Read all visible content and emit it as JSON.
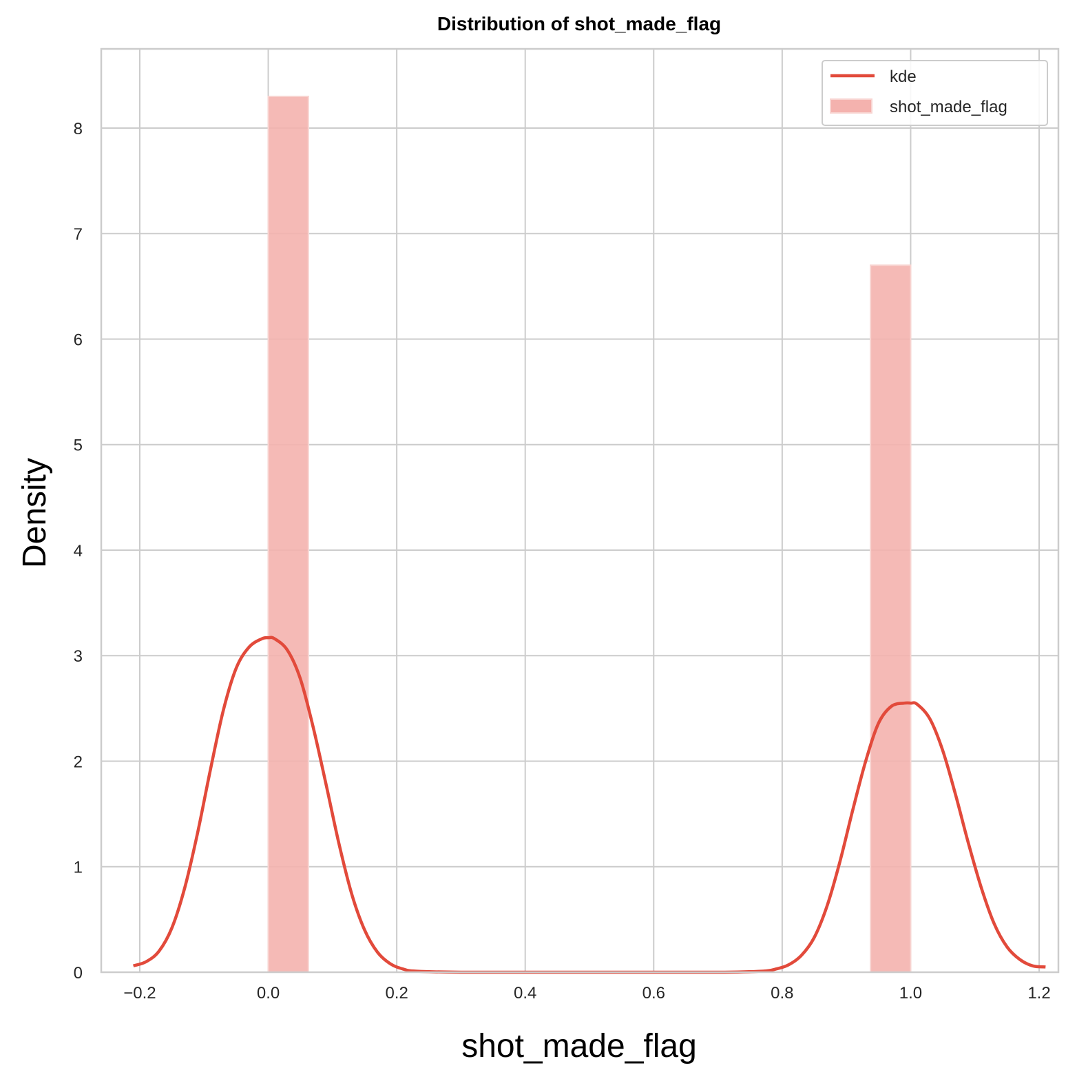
{
  "chart_data": {
    "type": "bar",
    "title": "Distribution of shot_made_flag",
    "xlabel": "shot_made_flag",
    "ylabel": "Density",
    "xlim": [
      -0.26,
      1.23
    ],
    "ylim": [
      0,
      8.75
    ],
    "x_ticks": [
      -0.2,
      0.0,
      0.2,
      0.4,
      0.6,
      0.8,
      1.0,
      1.2
    ],
    "x_tick_labels": [
      "−0.2",
      "0.0",
      "0.2",
      "0.4",
      "0.6",
      "0.8",
      "1.0",
      "1.2"
    ],
    "y_ticks": [
      0,
      1,
      2,
      3,
      4,
      5,
      6,
      7,
      8
    ],
    "y_tick_labels": [
      "0",
      "1",
      "2",
      "3",
      "4",
      "5",
      "6",
      "7",
      "8"
    ],
    "grid": true,
    "legend_position": "top-right",
    "histogram": {
      "name": "shot_made_flag",
      "color": "#f4b2ae",
      "bins": [
        {
          "x0": 0.0,
          "x1": 0.0625,
          "density": 8.3
        },
        {
          "x0": 0.9375,
          "x1": 1.0,
          "density": 6.7
        }
      ]
    },
    "kde": {
      "name": "kde",
      "color": "#e24a3b",
      "points": [
        [
          -0.21,
          0.06
        ],
        [
          -0.19,
          0.1
        ],
        [
          -0.17,
          0.2
        ],
        [
          -0.15,
          0.42
        ],
        [
          -0.13,
          0.8
        ],
        [
          -0.11,
          1.32
        ],
        [
          -0.09,
          1.92
        ],
        [
          -0.07,
          2.48
        ],
        [
          -0.05,
          2.88
        ],
        [
          -0.03,
          3.08
        ],
        [
          -0.01,
          3.16
        ],
        [
          0.0,
          3.17
        ],
        [
          0.01,
          3.16
        ],
        [
          0.03,
          3.05
        ],
        [
          0.05,
          2.78
        ],
        [
          0.07,
          2.32
        ],
        [
          0.09,
          1.78
        ],
        [
          0.11,
          1.22
        ],
        [
          0.13,
          0.74
        ],
        [
          0.15,
          0.4
        ],
        [
          0.17,
          0.19
        ],
        [
          0.19,
          0.08
        ],
        [
          0.21,
          0.03
        ],
        [
          0.23,
          0.01
        ],
        [
          0.3,
          0.0
        ],
        [
          0.5,
          0.0
        ],
        [
          0.7,
          0.0
        ],
        [
          0.77,
          0.01
        ],
        [
          0.79,
          0.03
        ],
        [
          0.81,
          0.07
        ],
        [
          0.83,
          0.16
        ],
        [
          0.85,
          0.33
        ],
        [
          0.87,
          0.63
        ],
        [
          0.89,
          1.05
        ],
        [
          0.91,
          1.54
        ],
        [
          0.93,
          2.0
        ],
        [
          0.95,
          2.36
        ],
        [
          0.97,
          2.52
        ],
        [
          0.99,
          2.55
        ],
        [
          1.0,
          2.55
        ],
        [
          1.01,
          2.54
        ],
        [
          1.03,
          2.4
        ],
        [
          1.05,
          2.1
        ],
        [
          1.07,
          1.68
        ],
        [
          1.09,
          1.22
        ],
        [
          1.11,
          0.8
        ],
        [
          1.13,
          0.46
        ],
        [
          1.15,
          0.24
        ],
        [
          1.17,
          0.12
        ],
        [
          1.19,
          0.06
        ],
        [
          1.21,
          0.05
        ]
      ]
    }
  }
}
